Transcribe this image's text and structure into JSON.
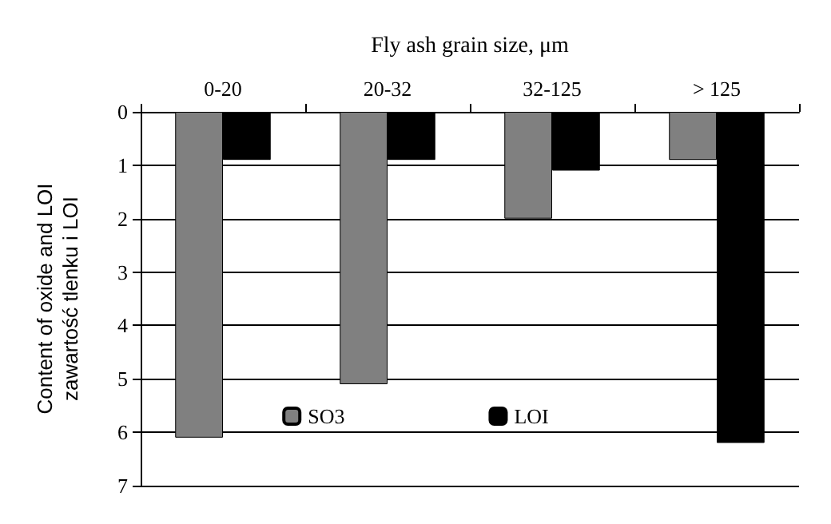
{
  "chart_data": {
    "type": "bar",
    "xlabel": "Fly ash grain size, μm",
    "ylabel": "Content of oxide and LOI\nzawartość tlenku i LOI",
    "categories": [
      "0-20",
      "20-32",
      "32-125",
      "> 125"
    ],
    "series": [
      {
        "name": "SO3",
        "color": "#808080",
        "values": [
          6.1,
          5.1,
          2.0,
          0.9
        ]
      },
      {
        "name": "LOI",
        "color": "#000000",
        "values": [
          0.9,
          0.9,
          1.1,
          6.2
        ]
      }
    ],
    "ylim": [
      7,
      0
    ],
    "yticks": [
      0,
      1,
      2,
      3,
      4,
      5,
      6,
      7
    ],
    "grid": "y",
    "legend": "bottom"
  }
}
